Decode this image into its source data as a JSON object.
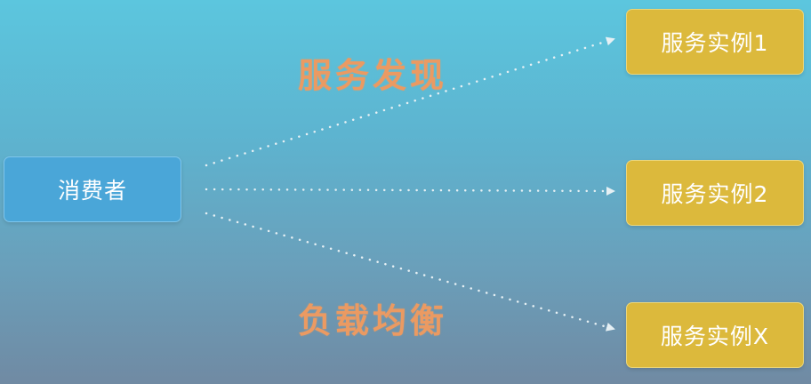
{
  "consumer": {
    "label": "消费者"
  },
  "instances": [
    {
      "label": "服务实例1"
    },
    {
      "label": "服务实例2"
    },
    {
      "label": "服务实例X"
    }
  ],
  "labels": {
    "discovery": "服务发现",
    "load_balancing": "负载均衡"
  },
  "colors": {
    "consumer_fill": "#4aa6d8",
    "instance_fill": "#dcb93c",
    "label_text": "#eb9a62",
    "arrow": "#e6f0f4"
  }
}
